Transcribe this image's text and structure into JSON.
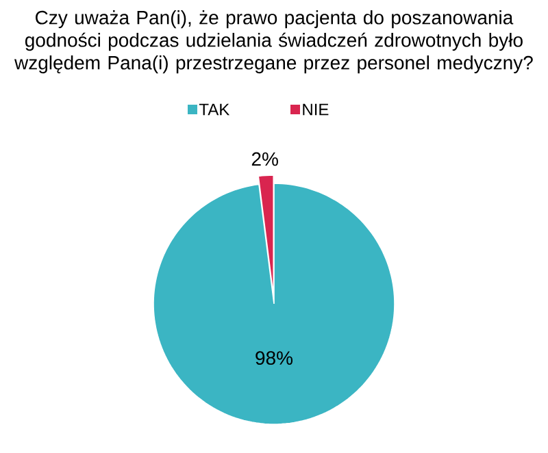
{
  "chart_data": {
    "type": "pie",
    "title": "Czy uważa Pan(i), że prawo pacjenta do poszanowania godności podczas udzielania świadczeń zdrowotnych było względem Pana(i) przestrzegane przez personel medyczny?",
    "categories": [
      "TAK",
      "NIE"
    ],
    "values": [
      98,
      2
    ],
    "colors": [
      "#3bb5c3",
      "#d9254f"
    ],
    "value_labels": [
      "98%",
      "2%"
    ],
    "legend": "top"
  }
}
